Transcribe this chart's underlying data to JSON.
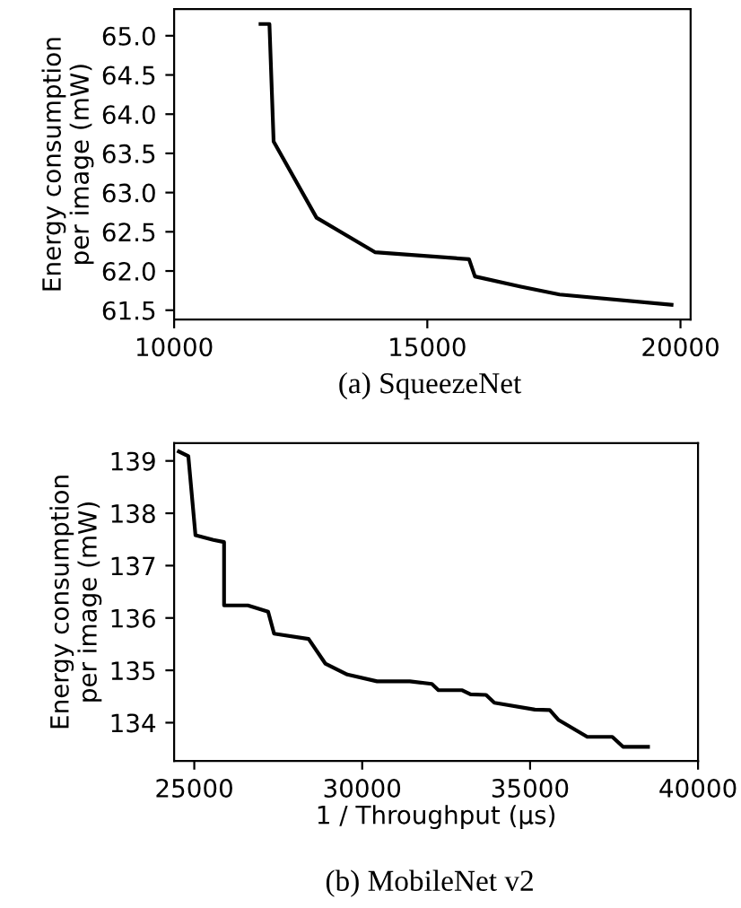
{
  "chart_data": [
    {
      "type": "line",
      "title": "(a) SqueezeNet",
      "ylabel": "Energy consumption\nper image (mW)",
      "series": [
        {
          "color": "#000000",
          "x": [
            11706,
            11882,
            11965,
            12812,
            13965,
            15824,
            15941,
            16847,
            17612,
            19824
          ],
          "values": [
            65.15,
            65.15,
            63.65,
            62.68,
            62.24,
            62.15,
            61.93,
            61.8,
            61.7,
            61.57
          ]
        }
      ],
      "xlim": [
        10000,
        20200
      ],
      "ylim": [
        61.38,
        65.34
      ],
      "xticks": [
        10000,
        15000,
        20000
      ],
      "yticks": [
        {
          "value": 61.5,
          "label": "61.5"
        },
        {
          "value": 62.0,
          "label": "62.0"
        },
        {
          "value": 62.5,
          "label": "62.5"
        },
        {
          "value": 63.0,
          "label": "63.0"
        },
        {
          "value": 63.5,
          "label": "63.5"
        },
        {
          "value": 64.0,
          "label": "64.0"
        },
        {
          "value": 64.5,
          "label": "64.5"
        },
        {
          "value": 65.0,
          "label": "65.0"
        }
      ],
      "grid": false,
      "marker": "none",
      "line_style": "solid"
    },
    {
      "type": "line",
      "title": "(b) MobileNet v2",
      "xlabel": "1 / Throughput (µs)",
      "ylabel": "Energy consumption\nper image (mW)",
      "series": [
        {
          "color": "#000000",
          "x": [
            24539,
            24823,
            25035,
            25567,
            25887,
            25887,
            26596,
            27199,
            27376,
            28404,
            28901,
            29557,
            30443,
            31418,
            32074,
            32270,
            32979,
            33227,
            33688,
            33936,
            35142,
            35585,
            35851,
            36702,
            37447,
            37766,
            38511
          ],
          "values": [
            139.18,
            139.09,
            137.58,
            137.49,
            137.45,
            136.24,
            136.24,
            136.12,
            135.7,
            135.6,
            135.13,
            134.92,
            134.79,
            134.79,
            134.74,
            134.62,
            134.62,
            134.54,
            134.53,
            134.38,
            134.25,
            134.24,
            134.05,
            133.73,
            133.73,
            133.54,
            133.54
          ]
        }
      ],
      "xlim": [
        24400,
        40000
      ],
      "ylim": [
        133.27,
        139.34
      ],
      "xticks": [
        25000,
        30000,
        35000,
        40000
      ],
      "yticks": [
        134,
        135,
        136,
        137,
        138,
        139
      ],
      "grid": false,
      "marker": "none",
      "line_style": "solid"
    }
  ]
}
